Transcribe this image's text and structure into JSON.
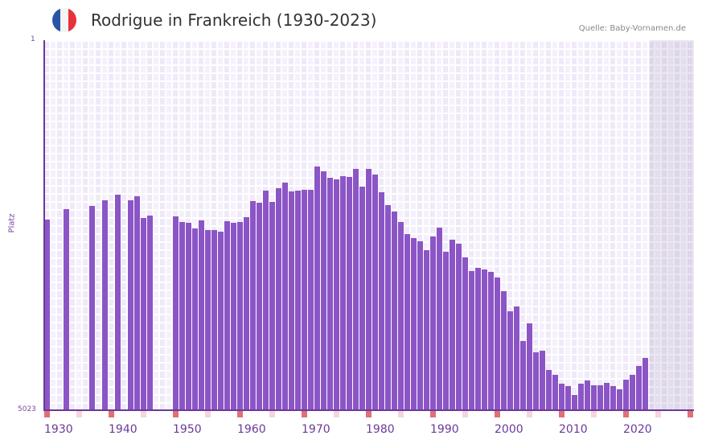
{
  "header": {
    "title": "Rodrigue in Frankreich (1930-2023)",
    "source": "Quelle: Baby-Vornamen.de",
    "flag_icon": "france-flag-icon",
    "flag_colors": [
      "#2a55a5",
      "#f4f4f4",
      "#e8313a"
    ]
  },
  "axis": {
    "y_top": "1",
    "y_bottom": "5023",
    "y_title": "Platz"
  },
  "colors": {
    "bar": "#8c55c6",
    "axis": "#6a3a9a",
    "tick_decade": "#e07078",
    "tick_half": "#f5d5de"
  },
  "chart_data": {
    "type": "bar",
    "title": "Rodrigue in Frankreich (1930-2023)",
    "xlabel": "",
    "ylabel": "Platz",
    "ylim": [
      5023,
      1
    ],
    "y_inverted": true,
    "grid": true,
    "x_tick_labels": [
      "1930",
      "1940",
      "1950",
      "1960",
      "1970",
      "1980",
      "1990",
      "2000",
      "2010",
      "2020"
    ],
    "x": [
      1930,
      1933,
      1937,
      1939,
      1941,
      1943,
      1944,
      1945,
      1946,
      1950,
      1951,
      1952,
      1953,
      1954,
      1955,
      1956,
      1957,
      1958,
      1959,
      1960,
      1961,
      1962,
      1963,
      1964,
      1965,
      1966,
      1967,
      1968,
      1969,
      1970,
      1971,
      1972,
      1973,
      1974,
      1975,
      1976,
      1977,
      1978,
      1979,
      1980,
      1981,
      1982,
      1983,
      1984,
      1985,
      1986,
      1987,
      1988,
      1989,
      1990,
      1991,
      1992,
      1993,
      1994,
      1995,
      1996,
      1997,
      1998,
      1999,
      2000,
      2001,
      2002,
      2003,
      2004,
      2005,
      2006,
      2007,
      2008,
      2009,
      2010,
      2011,
      2012,
      2013,
      2014,
      2015,
      2016,
      2017,
      2018,
      2019,
      2020,
      2021,
      2022,
      2023
    ],
    "values": [
      2436,
      2294,
      2250,
      2174,
      2097,
      2174,
      2119,
      2414,
      2381,
      2392,
      2469,
      2480,
      2556,
      2447,
      2578,
      2578,
      2600,
      2458,
      2480,
      2469,
      2403,
      2185,
      2207,
      2043,
      2196,
      2010,
      1934,
      2054,
      2043,
      2032,
      2032,
      1715,
      1781,
      1868,
      1890,
      1846,
      1857,
      1748,
      1988,
      1748,
      1824,
      2065,
      2239,
      2327,
      2469,
      2633,
      2687,
      2731,
      2851,
      2665,
      2545,
      2873,
      2709,
      2764,
      2950,
      3135,
      3092,
      3113,
      3146,
      3222,
      3408,
      3681,
      3615,
      4084,
      3844,
      4237,
      4215,
      4477,
      4542,
      4663,
      4695,
      4816,
      4663,
      4619,
      4684,
      4684,
      4652,
      4695,
      4739,
      4608,
      4542,
      4419,
      4310
    ]
  }
}
